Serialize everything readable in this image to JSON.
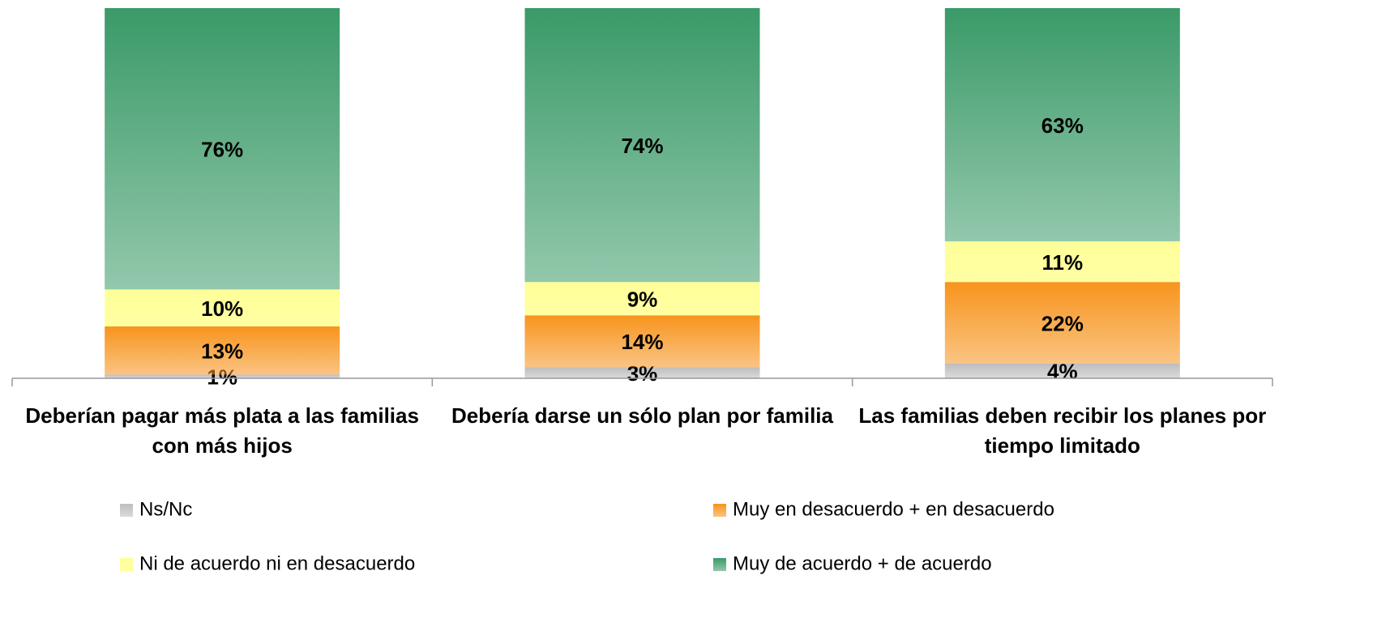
{
  "chart_data": {
    "type": "stacked_bar",
    "categories": [
      "Deberían pagar más plata a las familias con más hijos",
      "Debería darse un sólo plan por familia",
      "Las familias deben recibir los planes por tiempo limitado"
    ],
    "ylim": [
      0,
      100
    ],
    "series": [
      {
        "name": "Ns/Nc",
        "color": "#bdbdbd",
        "values": [
          1,
          3,
          4
        ],
        "value_labels": [
          "1%",
          "3%",
          "4%"
        ]
      },
      {
        "name": "Muy en desacuerdo + en desacuerdo",
        "color": "#f7941d",
        "values": [
          13,
          14,
          22
        ],
        "value_labels": [
          "13%",
          "14%",
          "22%"
        ]
      },
      {
        "name": "Ni de acuerdo ni en desacuerdo",
        "color": "#ffff99",
        "values": [
          10,
          9,
          11
        ],
        "value_labels": [
          "10%",
          "9%",
          "11%"
        ]
      },
      {
        "name": "Muy de acuerdo + de acuerdo",
        "color": "#3a9a68",
        "values": [
          76,
          74,
          63
        ],
        "value_labels": [
          "76%",
          "74%",
          "63%"
        ]
      }
    ],
    "legend": "bottom"
  }
}
